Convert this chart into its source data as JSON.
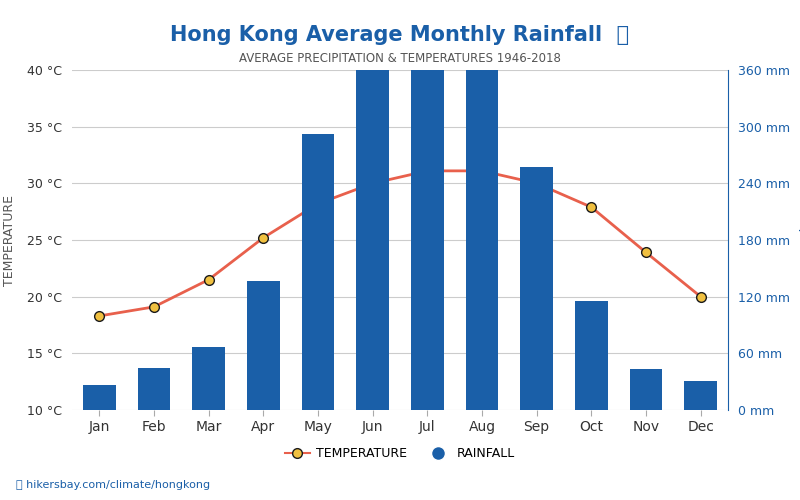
{
  "title": "Hong Kong Average Monthly Rainfall 💧",
  "subtitle": "AVERAGE PRECIPITATION & TEMPERATURES 1946-2018",
  "months": [
    "Jan",
    "Feb",
    "Mar",
    "Apr",
    "May",
    "Jun",
    "Jul",
    "Aug",
    "Sep",
    "Oct",
    "Nov",
    "Dec"
  ],
  "rainfall_mm": [
    26,
    44,
    67,
    137,
    292,
    394,
    381,
    367,
    257,
    115,
    43,
    31
  ],
  "temperature_c": [
    18.3,
    19.1,
    21.5,
    25.2,
    28.2,
    30.0,
    31.1,
    31.1,
    30.0,
    27.9,
    23.9,
    20.0
  ],
  "bar_color": "#1a5fa8",
  "line_color": "#e8604c",
  "marker_face": "#f0c040",
  "marker_edge": "#1a1a1a",
  "temp_ylim": [
    10,
    40
  ],
  "rain_ylim": [
    0,
    360
  ],
  "temp_ticks": [
    10,
    15,
    20,
    25,
    30,
    35,
    40
  ],
  "rain_ticks": [
    0,
    60,
    120,
    180,
    240,
    300,
    360
  ],
  "ylabel_left": "TEMPERATURE",
  "ylabel_right": "Precipitation",
  "watermark": "hikersbay.com/climate/hongkong",
  "background_color": "#ffffff",
  "grid_color": "#cccccc",
  "title_color": "#1a5fa8",
  "subtitle_color": "#555555",
  "axis_color": "#1a5fa8"
}
